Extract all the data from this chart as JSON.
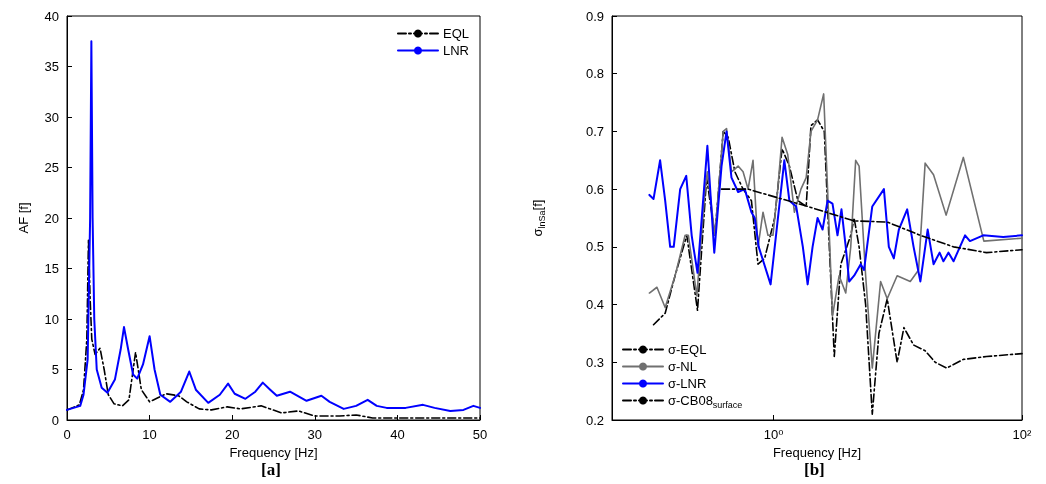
{
  "chart_data": [
    {
      "type": "line",
      "xlabel": "Frequency [Hz]",
      "ylabel": "AF [f]",
      "xlim": [
        0,
        50
      ],
      "ylim": [
        0,
        40
      ],
      "xticks": [
        0,
        10,
        20,
        30,
        40,
        50
      ],
      "yticks": [
        0,
        5,
        10,
        15,
        20,
        25,
        30,
        35,
        40
      ],
      "grid": false,
      "legend": "top right",
      "annotations": [
        "[a]"
      ],
      "series": [
        {
          "name": "EQL",
          "color": "#000000",
          "line_style": "dashed",
          "x": [
            0,
            1.5,
            2.0,
            2.4,
            2.6,
            2.8,
            3.0,
            3.4,
            4.0,
            4.5,
            5.0,
            5.7,
            6.7,
            7.5,
            8.3,
            9,
            10,
            11,
            12,
            13.5,
            14.5,
            16,
            17.5,
            19.4,
            21,
            23.5,
            26,
            28,
            30,
            33,
            35,
            37,
            42,
            45,
            50
          ],
          "values": [
            1.0,
            1.5,
            3,
            8,
            17.8,
            12,
            8,
            6.5,
            7.1,
            5,
            2.5,
            1.6,
            1.4,
            2,
            6.7,
            3,
            1.8,
            2.2,
            2.6,
            2.4,
            1.8,
            1.1,
            1.0,
            1.3,
            1.1,
            1.4,
            0.7,
            0.9,
            0.4,
            0.4,
            0.5,
            0.2,
            0.2,
            0.2,
            0.2
          ]
        },
        {
          "name": "LNR",
          "color": "#0000ff",
          "line_style": "solid",
          "x": [
            0,
            1.6,
            2.0,
            2.5,
            2.8,
            2.95,
            3.1,
            3.3,
            3.6,
            4.2,
            4.9,
            5.8,
            6.5,
            6.9,
            7.4,
            8.0,
            8.5,
            9.2,
            10,
            10.6,
            11.3,
            12.5,
            13.8,
            14.8,
            15.6,
            17.1,
            18.5,
            19.5,
            20.3,
            21.6,
            22.8,
            23.7,
            24.6,
            25.4,
            27,
            29,
            30.8,
            31.8,
            33.5,
            35,
            36.4,
            37.5,
            38.7,
            41,
            43.1,
            44.5,
            46.4,
            48,
            49.2,
            50
          ],
          "values": [
            1.0,
            1.4,
            2.5,
            6,
            20,
            37.5,
            20,
            10,
            5,
            3.2,
            2.7,
            4,
            7,
            9.2,
            7,
            4.5,
            4.1,
            5.5,
            8.3,
            5,
            2.5,
            1.8,
            2.8,
            4.8,
            3,
            1.7,
            2.5,
            3.6,
            2.6,
            2.1,
            2.8,
            3.7,
            3,
            2.4,
            2.8,
            1.9,
            2.4,
            1.8,
            1.1,
            1.4,
            2.0,
            1.4,
            1.2,
            1.2,
            1.5,
            1.2,
            0.9,
            1.0,
            1.4,
            1.2
          ]
        }
      ]
    },
    {
      "type": "line",
      "xlabel": "Frequency [Hz]",
      "ylabel": "σ$_{lnSa}$[f]",
      "log": "x",
      "xlim": [
        0.05,
        100
      ],
      "ylim": [
        0.2,
        0.9
      ],
      "xticks": [
        {
          "value": 1,
          "label": "10⁰"
        },
        {
          "value": 100,
          "label": "10²"
        }
      ],
      "yticks": [
        0.2,
        0.3,
        0.4,
        0.5,
        0.6,
        0.7,
        0.8,
        0.9
      ],
      "grid": false,
      "legend": "bottom left",
      "annotations": [
        "[b]"
      ],
      "series": [
        {
          "name": "σ-EQL",
          "color": "#000000",
          "line_style": "dashed",
          "x": [
            0.108,
            0.134,
            0.161,
            0.2,
            0.244,
            0.289,
            0.337,
            0.393,
            0.431,
            0.488,
            0.568,
            0.663,
            0.749,
            0.847,
            1.02,
            1.17,
            1.34,
            1.57,
            1.83,
            2.0,
            2.26,
            2.56,
            2.81,
            3.08,
            3.48,
            4.18,
            4.45,
            4.88,
            5.51,
            6.23,
            7.05,
            8.22,
            9.88,
            11.2,
            13.4,
            16.6,
            20.0,
            24.8,
            33.7,
            51.8,
            100
          ],
          "values": [
            0.365,
            0.385,
            0.45,
            0.52,
            0.39,
            0.62,
            0.52,
            0.7,
            0.69,
            0.63,
            0.6,
            0.58,
            0.47,
            0.48,
            0.55,
            0.67,
            0.64,
            0.58,
            0.57,
            0.71,
            0.72,
            0.7,
            0.5,
            0.31,
            0.47,
            0.52,
            0.55,
            0.5,
            0.4,
            0.21,
            0.35,
            0.41,
            0.3,
            0.36,
            0.33,
            0.32,
            0.3,
            0.29,
            0.305,
            0.31,
            0.315
          ]
        },
        {
          "name": "σ-NL",
          "color": "#707070",
          "line_style": "solid",
          "x": [
            0.1,
            0.115,
            0.134,
            0.161,
            0.194,
            0.206,
            0.241,
            0.281,
            0.293,
            0.337,
            0.393,
            0.418,
            0.458,
            0.518,
            0.568,
            0.623,
            0.683,
            0.749,
            0.822,
            0.901,
            0.988,
            1.08,
            1.17,
            1.3,
            1.47,
            1.66,
            1.83,
            2.0,
            2.26,
            2.53,
            2.72,
            2.98,
            3.37,
            3.81,
            4.18,
            4.58,
            4.88,
            5.51,
            6.23,
            7.27,
            8.22,
            9.88,
            12.6,
            14.7,
            16.6,
            19.4,
            24.5,
            33.7,
            49.3,
            100
          ],
          "values": [
            0.42,
            0.43,
            0.395,
            0.45,
            0.52,
            0.52,
            0.415,
            0.6,
            0.63,
            0.52,
            0.7,
            0.705,
            0.63,
            0.64,
            0.63,
            0.6,
            0.65,
            0.5,
            0.56,
            0.52,
            0.52,
            0.6,
            0.69,
            0.66,
            0.56,
            0.6,
            0.62,
            0.7,
            0.72,
            0.765,
            0.6,
            0.38,
            0.45,
            0.42,
            0.5,
            0.65,
            0.64,
            0.45,
            0.29,
            0.44,
            0.41,
            0.45,
            0.44,
            0.46,
            0.645,
            0.625,
            0.555,
            0.655,
            0.51,
            0.515
          ]
        },
        {
          "name": "σ-LNR",
          "color": "#0000ff",
          "line_style": "solid",
          "x": [
            0.1,
            0.108,
            0.122,
            0.134,
            0.147,
            0.157,
            0.177,
            0.198,
            0.219,
            0.226,
            0.244,
            0.293,
            0.333,
            0.381,
            0.418,
            0.458,
            0.518,
            0.586,
            0.663,
            0.705,
            0.759,
            0.946,
            1.22,
            1.34,
            1.52,
            1.72,
            1.88,
            2.06,
            2.26,
            2.48,
            2.72,
            2.98,
            3.27,
            3.52,
            3.81,
            4.06,
            4.45,
            5.03,
            5.35,
            6.23,
            7.73,
            8.47,
            9.29,
            10.2,
            11.9,
            13.4,
            15.2,
            17.4,
            19.4,
            21.7,
            23.3,
            25.6,
            28.1,
            34.8,
            38.1,
            48.8,
            70.5,
            100
          ],
          "values": [
            0.59,
            0.583,
            0.65,
            0.58,
            0.5,
            0.5,
            0.6,
            0.623,
            0.52,
            0.5,
            0.455,
            0.675,
            0.49,
            0.64,
            0.7,
            0.62,
            0.595,
            0.6,
            0.56,
            0.55,
            0.5,
            0.435,
            0.65,
            0.58,
            0.57,
            0.5,
            0.435,
            0.5,
            0.55,
            0.53,
            0.58,
            0.575,
            0.52,
            0.565,
            0.5,
            0.44,
            0.45,
            0.47,
            0.46,
            0.57,
            0.6,
            0.5,
            0.48,
            0.53,
            0.565,
            0.5,
            0.44,
            0.53,
            0.47,
            0.49,
            0.475,
            0.49,
            0.475,
            0.52,
            0.51,
            0.52,
            0.517,
            0.52
          ]
        },
        {
          "name": "σ-CB08$_{surface}$",
          "color": "#000000",
          "line_style": "dashed",
          "x": [
            0.381,
            0.623,
            1.88,
            4.45,
            8.22,
            15.2,
            28.1,
            51.8,
            100
          ],
          "values": [
            0.6,
            0.6,
            0.57,
            0.545,
            0.543,
            0.52,
            0.5,
            0.49,
            0.495
          ]
        }
      ]
    }
  ]
}
